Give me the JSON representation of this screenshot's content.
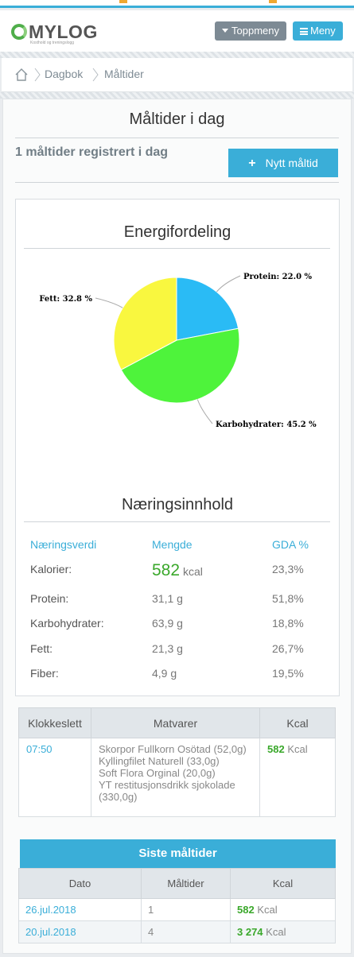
{
  "header": {
    "logo_text": "MYLOG",
    "logo_tagline": "Kosthold og treningslogg",
    "topmenu_label": "Toppmeny",
    "menu_label": "Meny"
  },
  "breadcrumb": {
    "items": [
      "Dagbok",
      "Måltider"
    ]
  },
  "page": {
    "title": "Måltider i dag",
    "count_text": "1 måltider registrert i dag",
    "new_button_label": "Nytt måltid"
  },
  "energy": {
    "title": "Energifordeling"
  },
  "chart_data": {
    "type": "pie",
    "slices": [
      {
        "name": "Protein",
        "value": 22.0,
        "label": "Protein: 22.0 %",
        "color": "#2abbf5"
      },
      {
        "name": "Karbohydrater",
        "value": 45.2,
        "label": "Karbohydrater: 45.2 %",
        "color": "#4ef33b"
      },
      {
        "name": "Fett",
        "value": 32.8,
        "label": "Fett: 32.8 %",
        "color": "#f9f73f"
      }
    ]
  },
  "nutrition": {
    "title": "Næringsinnhold",
    "headers": [
      "Næringsverdi",
      "Mengde",
      "GDA %"
    ],
    "rows": [
      {
        "label": "Kalorier:",
        "amount": "582",
        "unit": "kcal",
        "gda": "23,3%"
      },
      {
        "label": "Protein:",
        "amount": "31,1 g",
        "gda": "51,8%"
      },
      {
        "label": "Karbohydrater:",
        "amount": "63,9 g",
        "gda": "18,8%"
      },
      {
        "label": "Fett:",
        "amount": "21,3 g",
        "gda": "26,7%"
      },
      {
        "label": "Fiber:",
        "amount": "4,9 g",
        "gda": "19,5%"
      }
    ]
  },
  "meals_table": {
    "headers": [
      "Klokkeslett",
      "Matvarer",
      "Kcal"
    ],
    "rows": [
      {
        "time": "07:50",
        "foods": [
          "Skorpor Fullkorn Osötad (52,0g)",
          "Kyllingfilet Naturell (33,0g)",
          "Soft Flora Orginal (20,0g)",
          "YT restitusjonsdrikk sjokolade (330,0g)"
        ],
        "kcal": "582",
        "kcal_unit": "Kcal"
      }
    ]
  },
  "recent": {
    "title": "Siste måltider",
    "headers": [
      "Dato",
      "Måltider",
      "Kcal"
    ],
    "rows": [
      {
        "date": "26.jul.2018",
        "meals": "1",
        "kcal": "582",
        "unit": "Kcal"
      },
      {
        "date": "20.jul.2018",
        "meals": "4",
        "kcal": "3 274",
        "unit": "Kcal"
      }
    ]
  },
  "colors": {
    "accent": "#3aaed8",
    "green": "#3aa82b",
    "grey_button": "#7d8a94"
  }
}
